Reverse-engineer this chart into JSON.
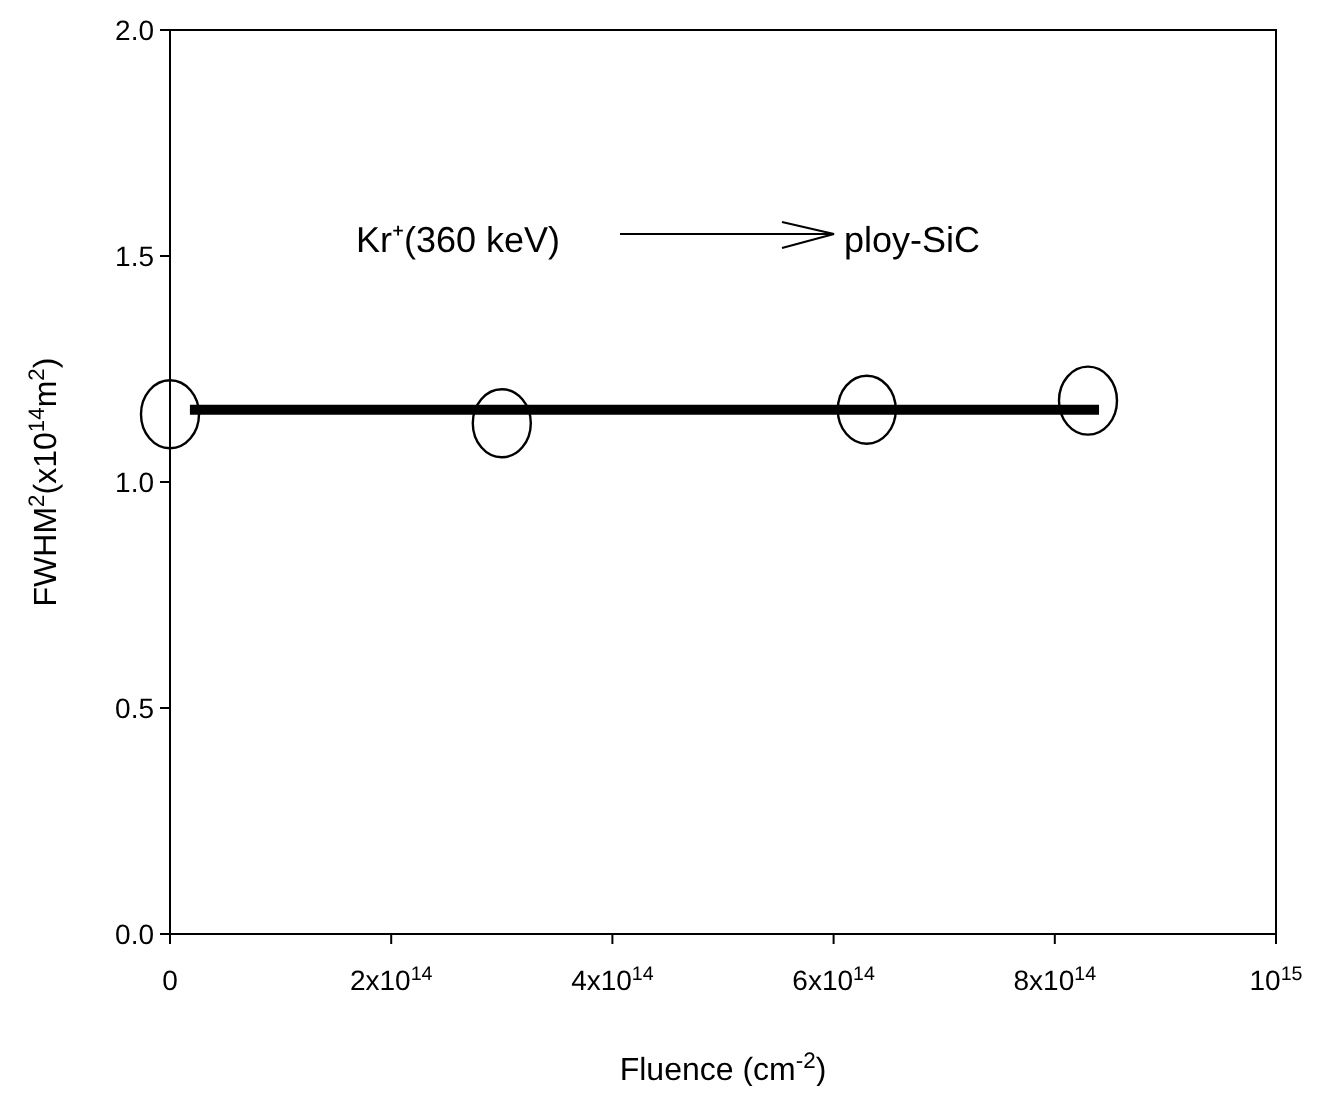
{
  "chart_data": {
    "type": "scatter",
    "xlabel": "Fluence (cm$^{-2}$)",
    "ylabel": "FWHM$^{2}$(x10$^{14}$m$^{2}$)",
    "x": [
      0,
      300000000000000.0,
      630000000000000.0,
      830000000000000.0
    ],
    "series": [
      {
        "color": "#000000",
        "values": [
          1.15,
          1.13,
          1.16,
          1.18
        ],
        "marker": "circle"
      },
      {
        "type": "line",
        "color": "#000000",
        "x": [
          18000000000000.0,
          840000000000000.0
        ],
        "values": [
          1.16,
          1.16
        ],
        "line_style": "solid"
      }
    ],
    "xlim": [
      0,
      1000000000000000.0
    ],
    "xticks": [
      0,
      {
        "value": 200000000000000.0,
        "label": "2x10$^{14}$"
      },
      {
        "value": 400000000000000.0,
        "label": "4x10$^{14}$"
      },
      {
        "value": 600000000000000.0,
        "label": "6x10$^{14}$"
      },
      {
        "value": 800000000000000.0,
        "label": "8x10$^{14}$"
      },
      {
        "value": 1000000000000000.0,
        "label": "10$^{15}$"
      }
    ],
    "ylim": [
      0,
      2
    ],
    "yticks": [
      {
        "value": 0,
        "label": "0.0"
      },
      {
        "value": 0.5,
        "label": "0.5"
      },
      {
        "value": 1,
        "label": "1.0"
      },
      {
        "value": 1.5,
        "label": "1.5"
      },
      {
        "value": 2,
        "label": "2.0"
      }
    ],
    "annotations": [
      "Kr⁺(360 keV)",
      "ploy-SiC"
    ],
    "grid": false
  }
}
